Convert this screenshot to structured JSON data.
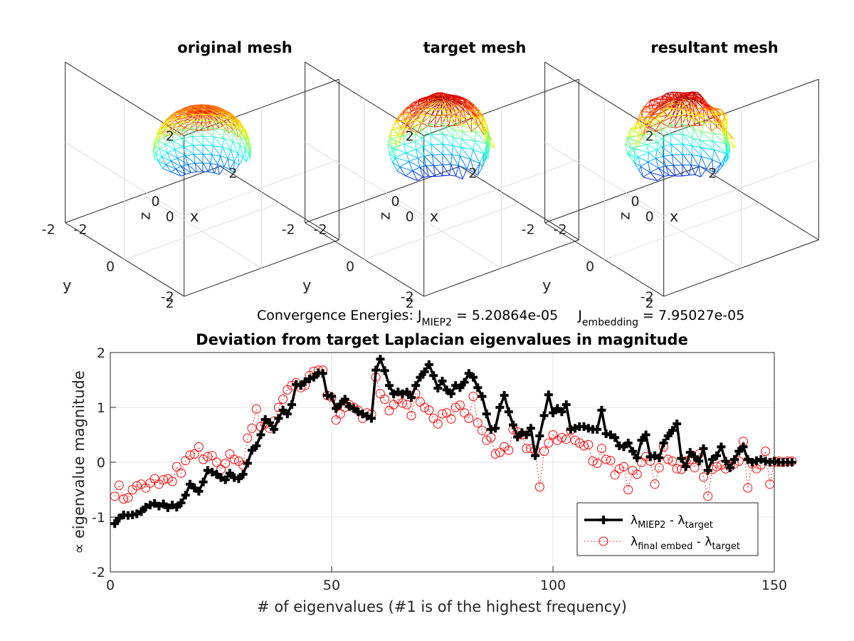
{
  "chart_data": [
    {
      "type": "surface",
      "title": "original mesh",
      "xlabel": "x",
      "ylabel": "y",
      "zlabel": "z",
      "xlim": [
        -2,
        2
      ],
      "ylim": [
        -2,
        2
      ],
      "zlim": [
        -2,
        2
      ],
      "xticks": [
        "-2",
        "0",
        "2"
      ],
      "yticks": [
        "-2",
        "0",
        "2"
      ],
      "zticks": [
        "-2",
        "0",
        "2"
      ],
      "shape": "sphere",
      "colormap": "jet"
    },
    {
      "type": "surface",
      "title": "target mesh",
      "xlabel": "x",
      "ylabel": "y",
      "zlabel": "z",
      "xlim": [
        -2,
        2
      ],
      "ylim": [
        -2,
        2
      ],
      "zlim": [
        -2,
        2
      ],
      "xticks": [
        "-2",
        "0",
        "2"
      ],
      "yticks": [
        "-2",
        "0",
        "2"
      ],
      "zticks": [
        "-2",
        "0",
        "2"
      ],
      "shape": "lobed",
      "colormap": "jet"
    },
    {
      "type": "surface",
      "title": "resultant mesh",
      "xlabel": "x",
      "ylabel": "y",
      "zlabel": "z",
      "xlim": [
        -2,
        2
      ],
      "ylim": [
        -2,
        2
      ],
      "zlim": [
        -2,
        2
      ],
      "xticks": [
        "-2",
        "0",
        "2"
      ],
      "yticks": [
        "-2",
        "0",
        "2"
      ],
      "zticks": [
        "-2",
        "0",
        "2"
      ],
      "shape": "lobed-irregular",
      "colormap": "jet"
    },
    {
      "type": "line",
      "title": "Deviation from target Laplacian eigenvalues in magnitude",
      "xlabel": "# of eigenvalues (#1 is of the highest frequency)",
      "ylabel": "∝ eigenvalue magnitude",
      "xlim": [
        0,
        150
      ],
      "ylim": [
        -2,
        2
      ],
      "xticks": [
        0,
        50,
        100,
        150
      ],
      "yticks": [
        -2,
        -1,
        0,
        1,
        2
      ],
      "grid": true,
      "legend_position": "bottom-right",
      "annotation": {
        "prefix": "Convergence Energies: J",
        "sub1": "MIEP2",
        "val1": " = 5.20864e-05",
        "j2": "J",
        "sub2": "embedding",
        "val2": " = 7.95027e-05"
      },
      "legend": [
        {
          "parts": [
            "λ",
            "MIEP2",
            " - λ",
            "target"
          ],
          "color": "#000000",
          "style": "solid-plus"
        },
        {
          "parts": [
            "λ",
            "final embed",
            " - λ",
            "target"
          ],
          "color": "#ff0000",
          "style": "dotted-circle"
        }
      ],
      "series": [
        {
          "name": "λMIEP2 - λtarget",
          "color": "#000000",
          "x_start": 1,
          "values": [
            -1.12,
            -1.02,
            -0.96,
            -0.97,
            -0.96,
            -0.94,
            -0.9,
            -0.82,
            -0.78,
            -0.75,
            -0.8,
            -0.76,
            -0.83,
            -0.78,
            -0.82,
            -0.74,
            -0.6,
            -0.4,
            -0.47,
            -0.53,
            -0.36,
            -0.15,
            -0.18,
            -0.22,
            -0.28,
            -0.32,
            -0.2,
            -0.28,
            -0.3,
            -0.22,
            -0.02,
            0.22,
            0.3,
            0.5,
            0.78,
            0.72,
            0.6,
            0.8,
            0.95,
            0.88,
            1.05,
            1.42,
            1.4,
            1.47,
            1.52,
            1.55,
            1.63,
            1.62,
            1.22,
            1.2,
            0.98,
            1.06,
            1.15,
            1.02,
            0.98,
            0.92,
            0.88,
            0.84,
            0.8,
            1.68,
            1.88,
            1.67,
            1.4,
            1.25,
            1.28,
            1.25,
            1.28,
            1.18,
            1.4,
            1.55,
            1.65,
            1.78,
            1.58,
            1.35,
            1.48,
            1.32,
            1.25,
            1.4,
            1.36,
            1.46,
            1.62,
            1.55,
            1.36,
            1.2,
            0.88,
            0.6,
            0.62,
            1.0,
            1.22,
            0.92,
            0.68,
            0.46,
            0.54,
            0.5,
            0.62,
            0.12,
            0.48,
            0.85,
            1.23,
            0.9,
            0.98,
            0.92,
            1.05,
            0.6,
            0.62,
            0.65,
            0.65,
            0.62,
            0.6,
            0.6,
            0.95,
            0.52,
            0.5,
            0.45,
            0.3,
            0.28,
            0.35,
            0.2,
            0.08,
            0.4,
            0.5,
            0.1,
            0.12,
            0.08,
            0.35,
            0.48,
            0.58,
            0.7,
            0.07,
            -0.08,
            0.18,
            0.1,
            0.02,
            0.25,
            -0.15,
            0.05,
            0.12,
            0.28,
            0.02,
            -0.1,
            0.05,
            0.2,
            0.28,
            0.05,
            0.0,
            0.03,
            0.05,
            0.02,
            0.0,
            0.02,
            0.0,
            0.0,
            0.0,
            0.0
          ]
        },
        {
          "name": "λfinal embed - λtarget",
          "color": "#ff0000",
          "x_start": 1,
          "values": [
            -0.62,
            -0.42,
            -0.67,
            -0.65,
            -0.5,
            -0.43,
            -0.4,
            -0.47,
            -0.38,
            -0.3,
            -0.4,
            -0.32,
            -0.3,
            -0.35,
            -0.08,
            -0.2,
            0.03,
            0.13,
            0.15,
            0.28,
            0.05,
            0.1,
            0.12,
            0.0,
            -0.13,
            -0.02,
            0.15,
            0.05,
            0.02,
            -0.05,
            0.44,
            0.62,
            0.97,
            0.65,
            0.7,
            0.62,
            0.75,
            1.0,
            1.15,
            1.32,
            1.4,
            1.45,
            1.36,
            1.4,
            1.58,
            1.66,
            1.68,
            1.68,
            1.22,
            1.18,
            0.77,
            0.88,
            1.0,
            1.05,
            1.0,
            0.95,
            0.8,
            0.9,
            0.88,
            1.55,
            1.25,
            1.15,
            0.94,
            1.05,
            1.15,
            1.08,
            1.05,
            0.85,
            1.25,
            1.1,
            1.0,
            0.95,
            0.8,
            0.7,
            0.88,
            0.9,
            0.79,
            1.0,
            1.04,
            0.9,
            0.8,
            1.2,
            0.72,
            0.58,
            0.4,
            0.45,
            0.15,
            0.18,
            0.28,
            0.22,
            0.6,
            0.55,
            0.5,
            0.25,
            0.25,
            0.22,
            -0.45,
            0.2,
            0.35,
            0.5,
            0.4,
            0.45,
            0.42,
            0.58,
            0.4,
            0.35,
            0.3,
            0.32,
            0.02,
            -0.02,
            0.25,
            0.05,
            0.03,
            -0.23,
            -0.12,
            -0.08,
            -0.5,
            -0.15,
            -0.22,
            0.0,
            0.1,
            0.02,
            -0.4,
            -0.1,
            0.28,
            0.05,
            0.02,
            -0.12,
            -0.13,
            0.02,
            0.05,
            -0.1,
            0.15,
            -0.27,
            -0.62,
            -0.13,
            -0.08,
            -0.05,
            -0.12,
            -0.08,
            -0.03,
            0.02,
            0.38,
            -0.47,
            -0.03,
            -0.12,
            -0.05,
            0.2,
            -0.4,
            0.0,
            0.02,
            0.0,
            0.02,
            0.02
          ]
        }
      ]
    }
  ]
}
